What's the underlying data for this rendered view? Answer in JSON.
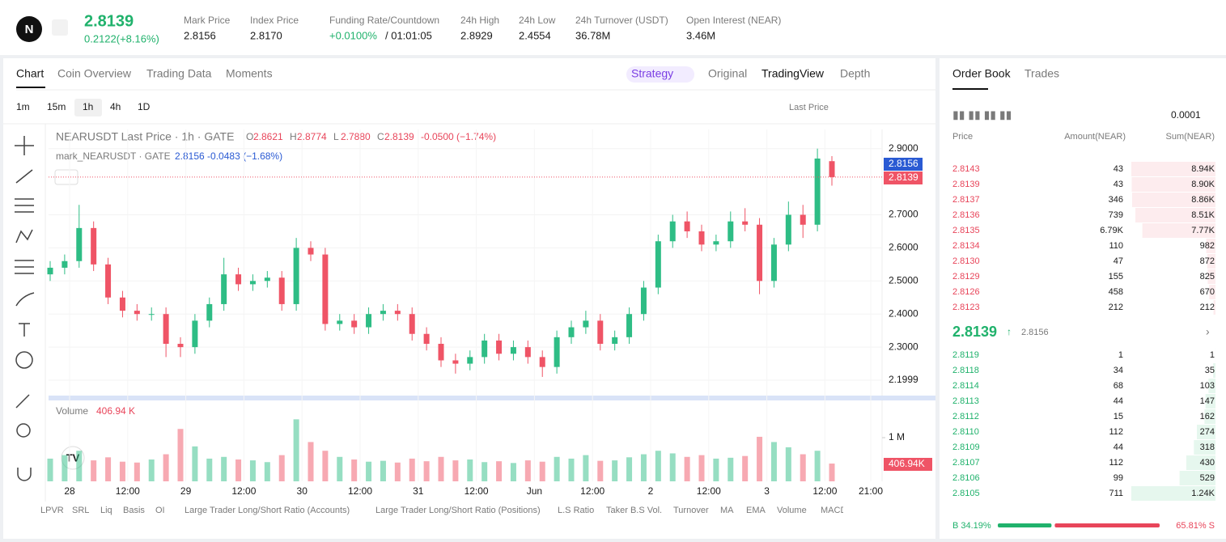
{
  "header": {
    "price": "2.8139",
    "change": "0.2122(+8.16%)",
    "stats": [
      {
        "label": "Mark Price",
        "value": "2.8156"
      },
      {
        "label": "Index Price",
        "value": "2.8170"
      },
      {
        "label": "Funding Rate/Countdown",
        "value": "+0.0100%",
        "extra": "/ 01:01:05"
      },
      {
        "label": "24h High",
        "value": "2.8929"
      },
      {
        "label": "24h Low",
        "value": "2.4554"
      },
      {
        "label": "24h Turnover (USDT)",
        "value": "36.78M"
      },
      {
        "label": "Open Interest (NEAR)",
        "value": "3.46M"
      }
    ]
  },
  "tabs": [
    "Chart",
    "Coin Overview",
    "Trading Data",
    "Moments"
  ],
  "views": [
    "Strategy",
    "Original",
    "TradingView",
    "Depth"
  ],
  "intervals": [
    "1m",
    "15m",
    "1h",
    "4h",
    "1D"
  ],
  "price_type": "Last Price",
  "legend": {
    "title": "NEARUSDT Last Price · 1h · GATE",
    "ohlc": [
      {
        "k": "O",
        "v": "2.8621"
      },
      {
        "k": "H",
        "v": "2.8774"
      },
      {
        "k": "L",
        "v": "2.7880"
      },
      {
        "k": "C",
        "v": "2.8139"
      }
    ],
    "change": "-0.0500 (−1.74%)",
    "mark_title": "mark_NEARUSDT · GATE",
    "mark_values": "2.8156 -0.0483 (−1.68%)",
    "volume": "Volume",
    "volume_value": "406.94 K"
  },
  "indicators": [
    "LPVR",
    "SRL",
    "Liq",
    "Basis",
    "OI",
    "Large Trader Long/Short Ratio (Accounts)",
    "Large Trader Long/Short Ratio (Positions)",
    "L.S Ratio",
    "Taker B.S Vol.",
    "Turnover",
    "MA",
    "EMA",
    "Volume",
    "MACD"
  ],
  "chart_data": {
    "type": "candlestick",
    "open": [
      2.52,
      2.54,
      2.56,
      2.66,
      2.55,
      2.45,
      2.41,
      2.4,
      2.4,
      2.31,
      2.3,
      2.38,
      2.43,
      2.52,
      2.49,
      2.5,
      2.51,
      2.43,
      2.6,
      2.58,
      2.37,
      2.38,
      2.36,
      2.4,
      2.41,
      2.4,
      2.34,
      2.31,
      2.26,
      2.25,
      2.27,
      2.32,
      2.28,
      2.3,
      2.27,
      2.24,
      2.33,
      2.36,
      2.38,
      2.31,
      2.33,
      2.4,
      2.48,
      2.62,
      2.68,
      2.65,
      2.61,
      2.62,
      2.68,
      2.67,
      2.5,
      2.61,
      2.7,
      2.67,
      2.8621
    ],
    "high": [
      2.56,
      2.58,
      2.73,
      2.68,
      2.57,
      2.47,
      2.43,
      2.42,
      2.42,
      2.33,
      2.4,
      2.45,
      2.57,
      2.54,
      2.52,
      2.53,
      2.53,
      2.63,
      2.62,
      2.6,
      2.4,
      2.4,
      2.42,
      2.43,
      2.43,
      2.42,
      2.36,
      2.33,
      2.28,
      2.29,
      2.34,
      2.34,
      2.32,
      2.32,
      2.29,
      2.35,
      2.38,
      2.41,
      2.4,
      2.35,
      2.42,
      2.5,
      2.64,
      2.7,
      2.71,
      2.67,
      2.64,
      2.71,
      2.72,
      2.69,
      2.63,
      2.74,
      2.73,
      2.9,
      2.8774
    ],
    "low": [
      2.5,
      2.52,
      2.54,
      2.53,
      2.43,
      2.39,
      2.38,
      2.38,
      2.27,
      2.27,
      2.28,
      2.36,
      2.41,
      2.47,
      2.47,
      2.48,
      2.41,
      2.41,
      2.56,
      2.35,
      2.35,
      2.34,
      2.34,
      2.38,
      2.38,
      2.32,
      2.29,
      2.24,
      2.22,
      2.23,
      2.25,
      2.26,
      2.26,
      2.25,
      2.21,
      2.22,
      2.31,
      2.34,
      2.29,
      2.29,
      2.31,
      2.38,
      2.46,
      2.6,
      2.63,
      2.59,
      2.59,
      2.6,
      2.65,
      2.46,
      2.48,
      2.59,
      2.63,
      2.65,
      2.788
    ],
    "close": [
      2.54,
      2.56,
      2.66,
      2.55,
      2.45,
      2.41,
      2.4,
      2.4,
      2.31,
      2.3,
      2.38,
      2.43,
      2.52,
      2.49,
      2.5,
      2.51,
      2.43,
      2.6,
      2.58,
      2.37,
      2.38,
      2.36,
      2.4,
      2.41,
      2.4,
      2.34,
      2.31,
      2.26,
      2.25,
      2.27,
      2.32,
      2.28,
      2.3,
      2.27,
      2.24,
      2.33,
      2.36,
      2.38,
      2.31,
      2.33,
      2.4,
      2.48,
      2.62,
      2.68,
      2.65,
      2.61,
      2.62,
      2.68,
      2.67,
      2.5,
      2.61,
      2.7,
      2.67,
      2.87,
      2.8139
    ],
    "volume": [
      520000,
      600000,
      700000,
      480000,
      550000,
      450000,
      430000,
      500000,
      620000,
      1200000,
      800000,
      520000,
      560000,
      500000,
      480000,
      440000,
      600000,
      1420000,
      900000,
      700000,
      560000,
      500000,
      450000,
      470000,
      430000,
      520000,
      460000,
      560000,
      480000,
      500000,
      440000,
      460000,
      420000,
      480000,
      450000,
      560000,
      520000,
      600000,
      470000,
      480000,
      550000,
      620000,
      700000,
      640000,
      560000,
      600000,
      520000,
      540000,
      580000,
      1020000,
      900000,
      780000,
      620000,
      700000,
      406940
    ],
    "ylim": [
      2.156,
      2.958
    ],
    "yticks": [
      {
        "value": 2.9,
        "label": "2.9000"
      },
      {
        "value": 2.7,
        "label": "2.7000"
      },
      {
        "value": 2.6,
        "label": "2.6000"
      },
      {
        "value": 2.5,
        "label": "2.5000"
      },
      {
        "value": 2.4,
        "label": "2.4000"
      },
      {
        "value": 2.3,
        "label": "2.3000"
      },
      {
        "value": 2.1999,
        "label": "2.1999"
      }
    ],
    "y2lim": [
      0,
      1760000
    ],
    "y2ticks": [
      {
        "value": 1000000,
        "label": "1 M"
      }
    ],
    "xtick_labels": [
      "28",
      "12:00",
      "29",
      "12:00",
      "30",
      "12:00",
      "31",
      "12:00",
      "Jun",
      "12:00",
      "2",
      "12:00",
      "3",
      "12:00",
      "21:00"
    ],
    "mark_price_tag": "2.8156",
    "last_price_tag": "2.8139",
    "volume_tag": "406.94K",
    "up_color": "#2ebd85",
    "down_color": "#ef5466",
    "grid": true
  },
  "order_book": {
    "tabs": [
      "Order Book",
      "Trades"
    ],
    "precision": "0.0001",
    "columns": [
      "Price",
      "Amount(NEAR)",
      "Sum(NEAR)"
    ],
    "asks": [
      {
        "price": "2.8143",
        "amount": "43",
        "sum": {
          "value": 8940,
          "label": "8.94K"
        }
      },
      {
        "price": "2.8139",
        "amount": "43",
        "sum": {
          "value": 8900,
          "label": "8.90K"
        }
      },
      {
        "price": "2.8137",
        "amount": "346",
        "sum": {
          "value": 8860,
          "label": "8.86K"
        }
      },
      {
        "price": "2.8136",
        "amount": "739",
        "sum": {
          "value": 8510,
          "label": "8.51K"
        }
      },
      {
        "price": "2.8135",
        "amount": "6.79K",
        "sum": {
          "value": 7770,
          "label": "7.77K"
        }
      },
      {
        "price": "2.8134",
        "amount": "110",
        "sum": 982
      },
      {
        "price": "2.8130",
        "amount": "47",
        "sum": 872
      },
      {
        "price": "2.8129",
        "amount": "155",
        "sum": 825
      },
      {
        "price": "2.8126",
        "amount": "458",
        "sum": 670
      },
      {
        "price": "2.8123",
        "amount": "212",
        "sum": 212
      }
    ],
    "last": "2.8139",
    "mark": "2.8156",
    "bids": [
      {
        "price": "2.8119",
        "amount": "1",
        "sum": 1
      },
      {
        "price": "2.8118",
        "amount": "34",
        "sum": 35
      },
      {
        "price": "2.8114",
        "amount": "68",
        "sum": 103
      },
      {
        "price": "2.8113",
        "amount": "44",
        "sum": 147
      },
      {
        "price": "2.8112",
        "amount": "15",
        "sum": 162
      },
      {
        "price": "2.8110",
        "amount": "112",
        "sum": 274
      },
      {
        "price": "2.8109",
        "amount": "44",
        "sum": 318
      },
      {
        "price": "2.8107",
        "amount": "112",
        "sum": 430
      },
      {
        "price": "2.8106",
        "amount": "99",
        "sum": 529
      },
      {
        "price": "2.8105",
        "amount": "711",
        "sum": {
          "value": 1240,
          "label": "1.24K"
        }
      }
    ],
    "buy_ratio": {
      "value": 34.19,
      "label": "B 34.19%"
    },
    "sell_ratio": {
      "value": 65.81,
      "label": "65.81% S"
    }
  }
}
